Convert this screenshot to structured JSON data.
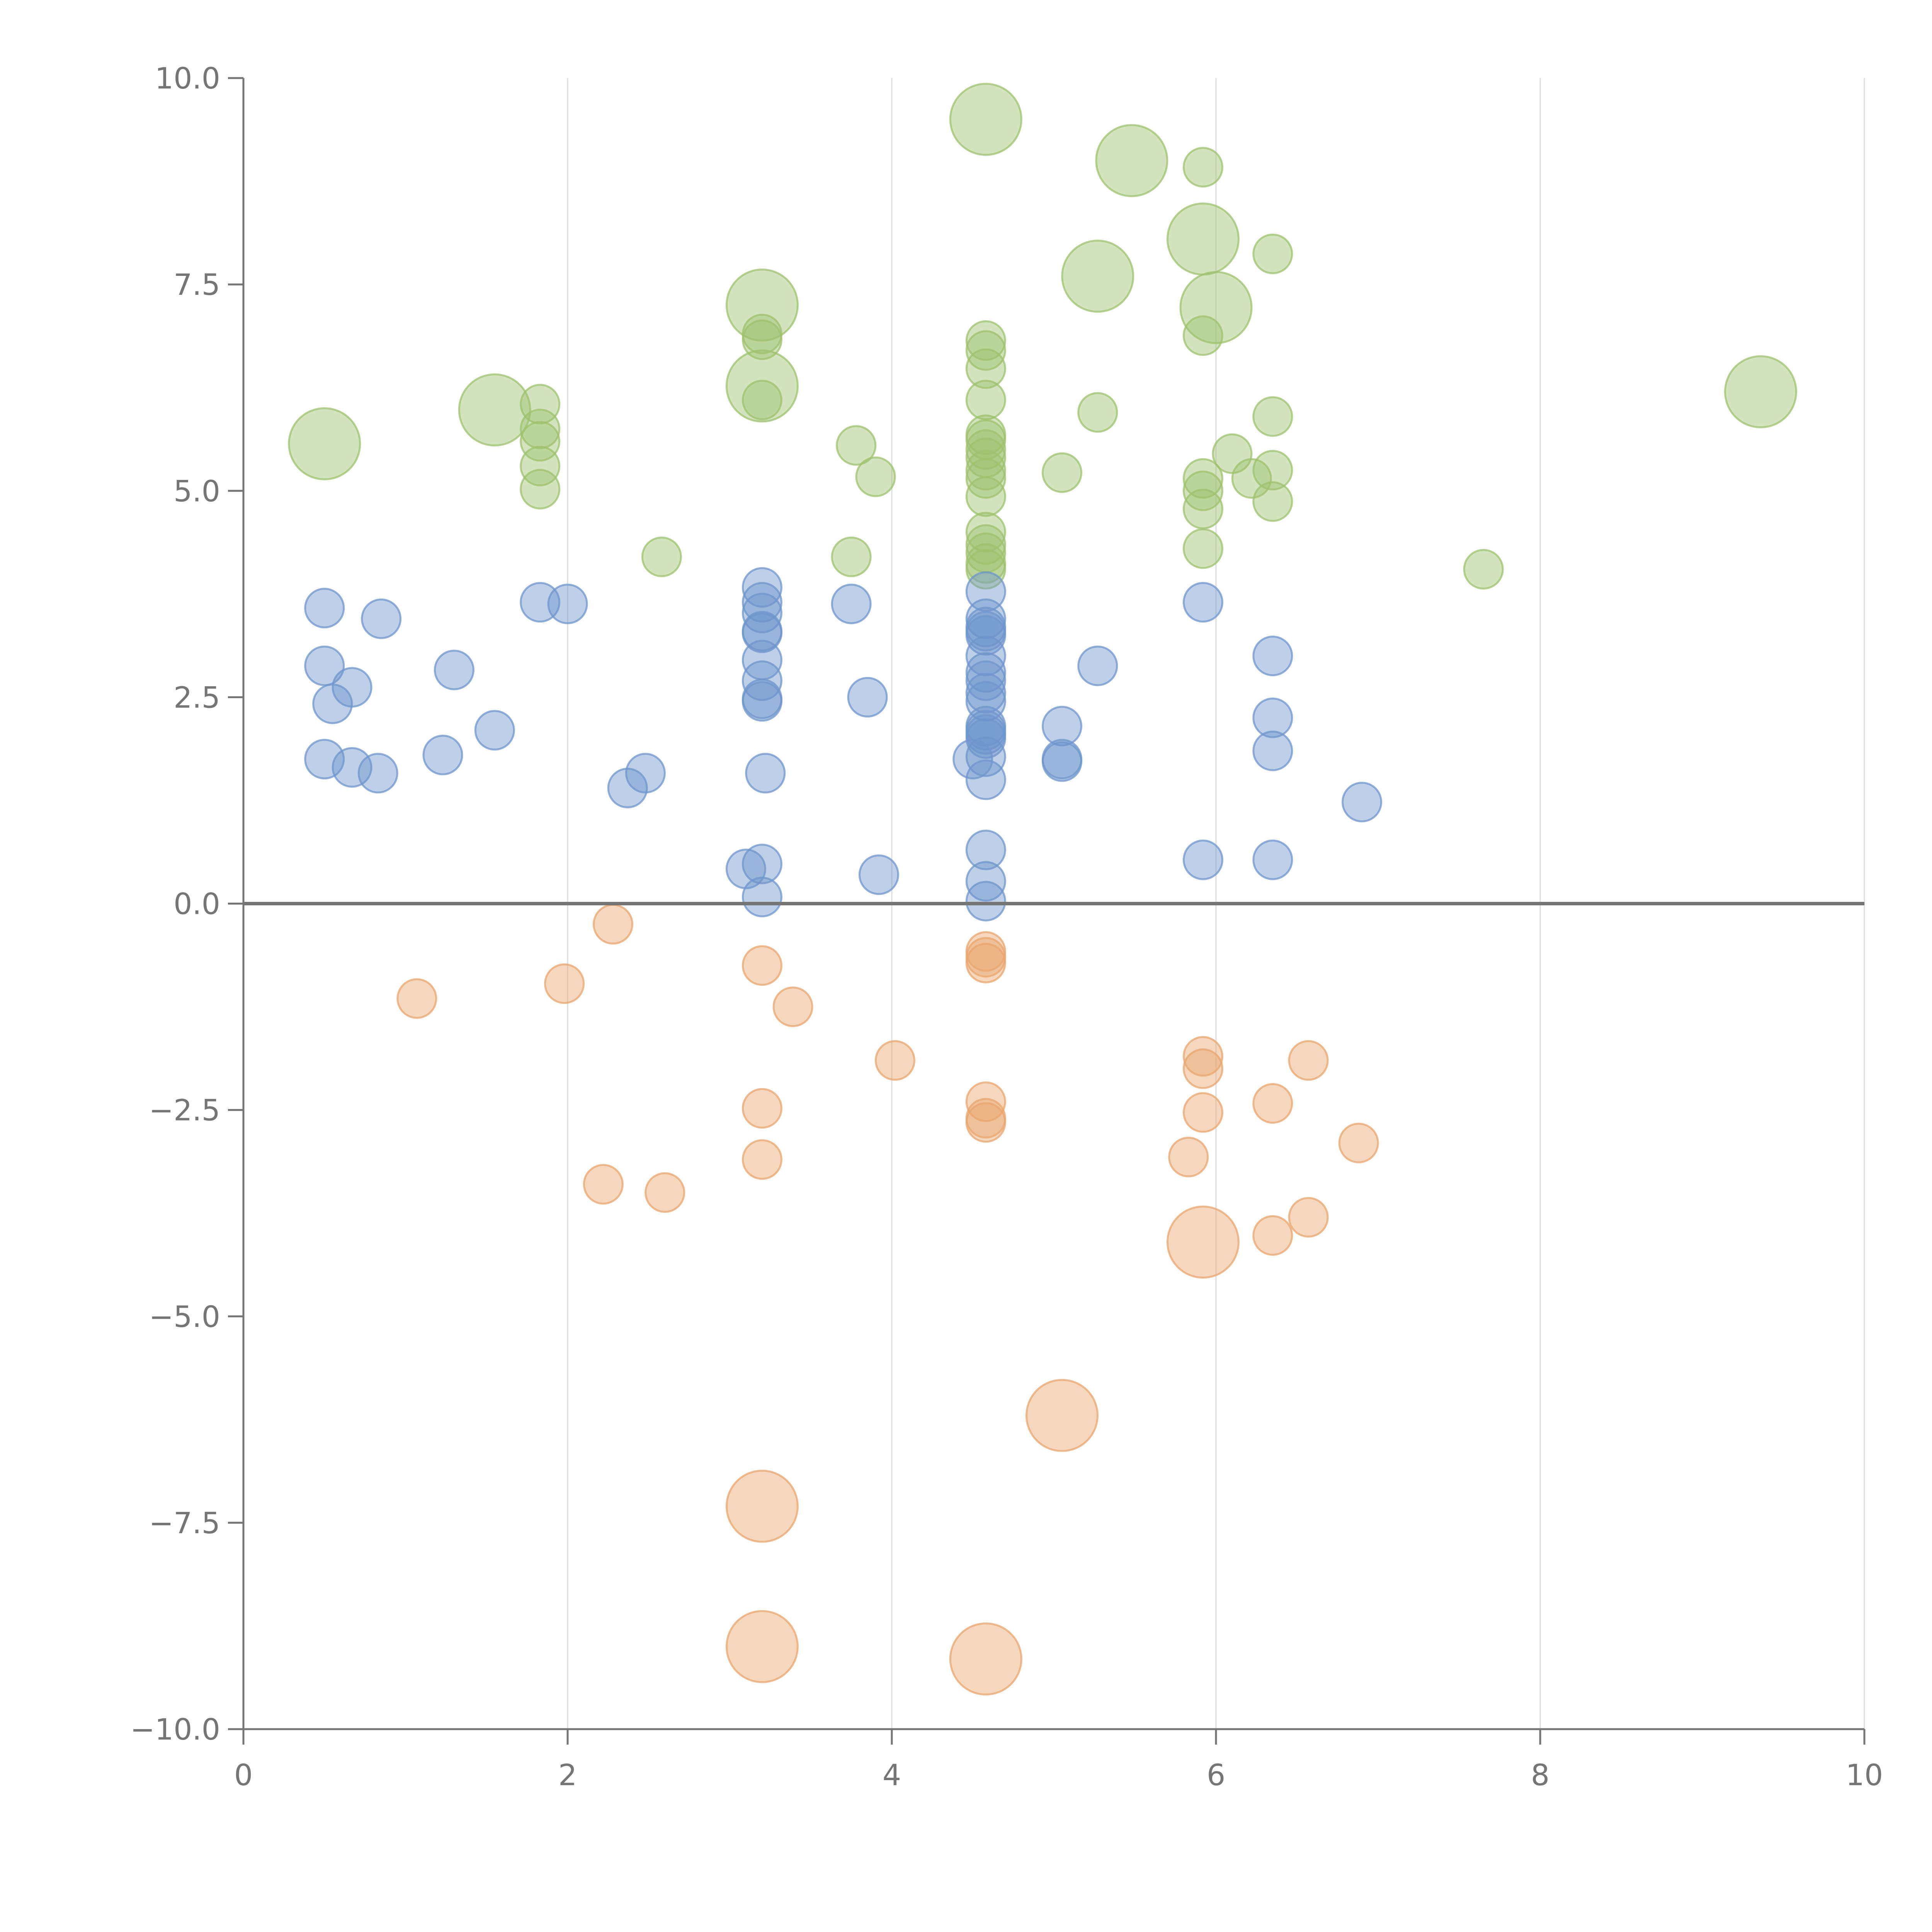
{
  "chart_data": {
    "type": "scatter",
    "title": "",
    "xlabel": "",
    "ylabel": "",
    "xlim": [
      0,
      10
    ],
    "ylim": [
      -10,
      10
    ],
    "x_ticks": [
      0,
      2,
      4,
      6,
      8,
      10
    ],
    "x_tick_labels": [
      "0",
      "2",
      "4",
      "6",
      "8",
      "10"
    ],
    "y_ticks": [
      10,
      7.5,
      5,
      2.5,
      0,
      -2.5,
      -5,
      -7.5,
      -10
    ],
    "y_tick_labels": [
      "10.0",
      "7.5",
      "5.0",
      "2.5",
      "0.0",
      "−2.5",
      "−5.0",
      "−7.5",
      "−10.0"
    ],
    "vertical_grid": true,
    "zero_line": true,
    "series": [
      {
        "name": "green",
        "color": "#9dc26e",
        "points": [
          [
            4.58,
            9.5,
            3
          ],
          [
            5.48,
            9.0,
            3
          ],
          [
            5.92,
            8.05,
            3
          ],
          [
            5.27,
            7.6,
            3
          ],
          [
            3.2,
            7.25,
            3
          ],
          [
            6.0,
            7.22,
            3
          ],
          [
            3.2,
            6.27,
            3
          ],
          [
            9.36,
            6.2,
            3
          ],
          [
            1.55,
            5.98,
            3
          ],
          [
            0.5,
            5.57,
            3
          ],
          [
            5.92,
            8.92,
            1
          ],
          [
            6.35,
            7.87,
            1
          ],
          [
            5.92,
            6.88,
            1
          ],
          [
            3.2,
            6.9,
            1
          ],
          [
            3.2,
            6.83,
            1
          ],
          [
            4.58,
            6.82,
            1
          ],
          [
            4.58,
            6.7,
            1
          ],
          [
            4.58,
            6.48,
            1
          ],
          [
            4.58,
            6.1,
            1
          ],
          [
            3.2,
            6.1,
            1
          ],
          [
            1.83,
            6.05,
            1
          ],
          [
            5.27,
            5.95,
            1
          ],
          [
            6.35,
            5.9,
            1
          ],
          [
            1.83,
            5.75,
            1
          ],
          [
            1.83,
            5.6,
            1
          ],
          [
            4.58,
            5.68,
            1
          ],
          [
            4.58,
            5.62,
            1
          ],
          [
            4.58,
            5.5,
            1
          ],
          [
            4.58,
            5.4,
            1
          ],
          [
            4.58,
            5.25,
            1
          ],
          [
            4.58,
            5.15,
            1
          ],
          [
            4.58,
            4.93,
            1
          ],
          [
            3.78,
            5.55,
            1
          ],
          [
            6.1,
            5.45,
            1
          ],
          [
            1.83,
            5.3,
            1
          ],
          [
            6.35,
            5.25,
            1
          ],
          [
            5.05,
            5.22,
            1
          ],
          [
            3.9,
            5.17,
            1
          ],
          [
            5.92,
            5.15,
            1
          ],
          [
            6.22,
            5.15,
            1
          ],
          [
            1.83,
            5.02,
            1
          ],
          [
            5.92,
            5.0,
            1
          ],
          [
            6.35,
            4.87,
            1
          ],
          [
            5.92,
            4.78,
            1
          ],
          [
            4.58,
            4.5,
            1
          ],
          [
            4.58,
            4.35,
            1
          ],
          [
            4.58,
            4.25,
            1
          ],
          [
            4.58,
            4.12,
            1
          ],
          [
            4.58,
            4.05,
            1
          ],
          [
            5.92,
            4.3,
            1
          ],
          [
            2.58,
            4.2,
            1
          ],
          [
            3.75,
            4.2,
            1
          ],
          [
            7.65,
            4.05,
            1
          ]
        ]
      },
      {
        "name": "blue",
        "color": "#6f95cc",
        "points": [
          [
            0.5,
            3.58,
            1
          ],
          [
            0.85,
            3.45,
            1
          ],
          [
            1.83,
            3.65,
            1
          ],
          [
            2.0,
            3.63,
            1
          ],
          [
            3.2,
            3.83,
            1
          ],
          [
            3.2,
            3.65,
            1
          ],
          [
            3.2,
            3.52,
            1
          ],
          [
            3.2,
            3.3,
            1
          ],
          [
            3.2,
            3.28,
            1
          ],
          [
            3.2,
            2.95,
            1
          ],
          [
            3.2,
            2.7,
            1
          ],
          [
            3.2,
            2.48,
            1
          ],
          [
            3.2,
            2.45,
            1
          ],
          [
            3.75,
            3.63,
            1
          ],
          [
            4.58,
            3.78,
            1
          ],
          [
            4.58,
            3.45,
            1
          ],
          [
            4.58,
            3.35,
            1
          ],
          [
            4.58,
            3.3,
            1
          ],
          [
            4.58,
            3.25,
            1
          ],
          [
            4.58,
            3.0,
            1
          ],
          [
            4.58,
            2.8,
            1
          ],
          [
            4.58,
            2.7,
            1
          ],
          [
            4.58,
            2.55,
            1
          ],
          [
            4.58,
            2.45,
            1
          ],
          [
            4.58,
            2.15,
            1
          ],
          [
            4.58,
            2.1,
            1
          ],
          [
            4.58,
            2.05,
            1
          ],
          [
            4.58,
            2.0,
            1
          ],
          [
            4.58,
            1.78,
            1
          ],
          [
            4.58,
            1.5,
            1
          ],
          [
            4.5,
            1.75,
            1
          ],
          [
            5.92,
            3.65,
            1
          ],
          [
            6.35,
            3.0,
            1
          ],
          [
            5.27,
            2.88,
            1
          ],
          [
            0.5,
            2.88,
            1
          ],
          [
            1.3,
            2.83,
            1
          ],
          [
            0.67,
            2.62,
            1
          ],
          [
            0.55,
            2.42,
            1
          ],
          [
            3.85,
            2.5,
            1
          ],
          [
            6.35,
            2.25,
            1
          ],
          [
            5.05,
            2.15,
            1
          ],
          [
            1.55,
            2.1,
            1
          ],
          [
            6.35,
            1.85,
            1
          ],
          [
            0.5,
            1.75,
            1
          ],
          [
            1.23,
            1.8,
            1
          ],
          [
            5.05,
            1.75,
            1
          ],
          [
            5.05,
            1.72,
            1
          ],
          [
            0.67,
            1.65,
            1
          ],
          [
            0.83,
            1.58,
            1
          ],
          [
            3.22,
            1.58,
            1
          ],
          [
            2.48,
            1.58,
            1
          ],
          [
            2.37,
            1.4,
            1
          ],
          [
            6.9,
            1.23,
            1
          ],
          [
            4.58,
            0.65,
            1
          ],
          [
            5.92,
            0.53,
            1
          ],
          [
            6.35,
            0.53,
            1
          ],
          [
            3.2,
            0.48,
            1
          ],
          [
            3.1,
            0.42,
            1
          ],
          [
            3.92,
            0.35,
            1
          ],
          [
            4.58,
            0.27,
            1
          ],
          [
            3.2,
            0.08,
            1
          ],
          [
            4.58,
            0.03,
            1
          ]
        ]
      },
      {
        "name": "orange",
        "color": "#e9a66e",
        "points": [
          [
            2.28,
            -0.25,
            1
          ],
          [
            4.58,
            -0.58,
            1
          ],
          [
            4.58,
            -0.65,
            1
          ],
          [
            4.58,
            -0.72,
            1
          ],
          [
            3.2,
            -0.75,
            1
          ],
          [
            1.98,
            -0.97,
            1
          ],
          [
            1.07,
            -1.15,
            1
          ],
          [
            3.39,
            -1.25,
            1
          ],
          [
            5.92,
            -1.85,
            1
          ],
          [
            6.57,
            -1.9,
            1
          ],
          [
            4.02,
            -1.9,
            1
          ],
          [
            5.92,
            -2.0,
            1
          ],
          [
            6.35,
            -2.42,
            1
          ],
          [
            4.58,
            -2.4,
            1
          ],
          [
            3.2,
            -2.48,
            1
          ],
          [
            5.92,
            -2.53,
            1
          ],
          [
            4.58,
            -2.6,
            1
          ],
          [
            4.58,
            -2.65,
            1
          ],
          [
            6.88,
            -2.9,
            1
          ],
          [
            5.83,
            -3.07,
            1
          ],
          [
            3.2,
            -3.1,
            1
          ],
          [
            2.22,
            -3.4,
            1
          ],
          [
            2.6,
            -3.5,
            1
          ],
          [
            6.57,
            -3.8,
            1
          ],
          [
            6.35,
            -4.02,
            1
          ],
          [
            5.92,
            -4.1,
            3
          ],
          [
            5.05,
            -6.2,
            3
          ],
          [
            3.2,
            -7.3,
            3
          ],
          [
            3.2,
            -9.0,
            3
          ],
          [
            4.58,
            -9.15,
            3
          ]
        ]
      }
    ]
  }
}
